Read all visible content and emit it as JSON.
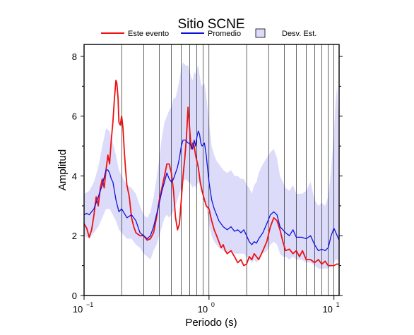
{
  "chart_data": {
    "type": "line",
    "title": "Sitio SCNE",
    "xlabel": "Periodo (s)",
    "ylabel": "Amplitud",
    "x_scale": "log",
    "xlim": [
      0.1,
      11
    ],
    "ylim": [
      0,
      8.4
    ],
    "x_ticks": [
      {
        "value": 0.1,
        "base": "10",
        "exp": "−1"
      },
      {
        "value": 1,
        "base": "10",
        "exp": "0"
      },
      {
        "value": 10,
        "base": "10",
        "exp": "1"
      }
    ],
    "y_ticks": [
      0,
      2,
      4,
      6,
      8
    ],
    "grid": "vertical log gridlines, horizontal ticks",
    "legend": {
      "placement": "top",
      "entries": [
        {
          "label": "Este evento",
          "kind": "line",
          "color": "#ee1111"
        },
        {
          "label": "Promedio",
          "kind": "line",
          "color": "#1111dd"
        },
        {
          "label": "Desv. Est.",
          "kind": "band",
          "color": "#dcdcfa"
        }
      ]
    },
    "series": [
      {
        "name": "Este evento",
        "color": "#ee1111",
        "points": [
          [
            0.1,
            2.4
          ],
          [
            0.105,
            2.25
          ],
          [
            0.11,
            1.95
          ],
          [
            0.115,
            2.2
          ],
          [
            0.12,
            2.7
          ],
          [
            0.125,
            3.3
          ],
          [
            0.13,
            3.0
          ],
          [
            0.135,
            3.6
          ],
          [
            0.14,
            3.9
          ],
          [
            0.145,
            3.6
          ],
          [
            0.15,
            4.2
          ],
          [
            0.155,
            4.7
          ],
          [
            0.16,
            4.4
          ],
          [
            0.165,
            5.2
          ],
          [
            0.17,
            5.8
          ],
          [
            0.175,
            6.6
          ],
          [
            0.18,
            7.2
          ],
          [
            0.183,
            7.1
          ],
          [
            0.187,
            6.6
          ],
          [
            0.19,
            5.8
          ],
          [
            0.195,
            5.7
          ],
          [
            0.2,
            6.0
          ],
          [
            0.205,
            5.6
          ],
          [
            0.21,
            4.8
          ],
          [
            0.215,
            4.2
          ],
          [
            0.22,
            3.7
          ],
          [
            0.23,
            3.3
          ],
          [
            0.24,
            2.6
          ],
          [
            0.25,
            2.3
          ],
          [
            0.26,
            2.1
          ],
          [
            0.28,
            2.0
          ],
          [
            0.3,
            2.0
          ],
          [
            0.32,
            1.85
          ],
          [
            0.34,
            1.9
          ],
          [
            0.36,
            2.1
          ],
          [
            0.38,
            2.6
          ],
          [
            0.4,
            3.2
          ],
          [
            0.42,
            3.6
          ],
          [
            0.44,
            4.0
          ],
          [
            0.46,
            4.4
          ],
          [
            0.48,
            4.4
          ],
          [
            0.5,
            4.1
          ],
          [
            0.52,
            3.5
          ],
          [
            0.54,
            2.6
          ],
          [
            0.56,
            2.2
          ],
          [
            0.58,
            2.4
          ],
          [
            0.6,
            3.2
          ],
          [
            0.62,
            4.0
          ],
          [
            0.64,
            4.6
          ],
          [
            0.66,
            5.3
          ],
          [
            0.68,
            6.3
          ],
          [
            0.7,
            5.6
          ],
          [
            0.72,
            4.9
          ],
          [
            0.74,
            5.1
          ],
          [
            0.76,
            5.0
          ],
          [
            0.78,
            4.7
          ],
          [
            0.8,
            4.5
          ],
          [
            0.82,
            4.3
          ],
          [
            0.85,
            3.8
          ],
          [
            0.88,
            3.5
          ],
          [
            0.92,
            3.2
          ],
          [
            0.95,
            3.0
          ],
          [
            1.0,
            2.9
          ],
          [
            1.05,
            2.5
          ],
          [
            1.1,
            2.2
          ],
          [
            1.15,
            2.0
          ],
          [
            1.2,
            1.8
          ],
          [
            1.25,
            1.6
          ],
          [
            1.3,
            1.7
          ],
          [
            1.35,
            1.5
          ],
          [
            1.4,
            1.4
          ],
          [
            1.5,
            1.5
          ],
          [
            1.6,
            1.3
          ],
          [
            1.7,
            1.1
          ],
          [
            1.8,
            1.2
          ],
          [
            1.9,
            1.0
          ],
          [
            2.0,
            1.05
          ],
          [
            2.1,
            1.3
          ],
          [
            2.2,
            1.2
          ],
          [
            2.3,
            1.4
          ],
          [
            2.5,
            1.2
          ],
          [
            2.7,
            1.5
          ],
          [
            2.9,
            1.8
          ],
          [
            3.1,
            2.3
          ],
          [
            3.3,
            2.6
          ],
          [
            3.5,
            2.5
          ],
          [
            3.7,
            2.2
          ],
          [
            3.9,
            1.8
          ],
          [
            4.1,
            1.5
          ],
          [
            4.4,
            1.55
          ],
          [
            4.7,
            1.4
          ],
          [
            5.0,
            1.5
          ],
          [
            5.3,
            1.3
          ],
          [
            5.6,
            1.5
          ],
          [
            6.0,
            1.2
          ],
          [
            6.5,
            1.2
          ],
          [
            7.0,
            1.1
          ],
          [
            7.5,
            1.2
          ],
          [
            8.0,
            1.05
          ],
          [
            8.5,
            1.15
          ],
          [
            9.0,
            1.0
          ],
          [
            9.5,
            1.0
          ],
          [
            10.0,
            1.0
          ],
          [
            10.5,
            1.05
          ],
          [
            11.0,
            1.05
          ]
        ]
      },
      {
        "name": "Promedio",
        "color": "#1111dd",
        "points": [
          [
            0.1,
            2.7
          ],
          [
            0.105,
            2.75
          ],
          [
            0.11,
            2.7
          ],
          [
            0.12,
            2.9
          ],
          [
            0.13,
            3.3
          ],
          [
            0.14,
            3.7
          ],
          [
            0.15,
            4.2
          ],
          [
            0.155,
            4.2
          ],
          [
            0.16,
            4.1
          ],
          [
            0.165,
            3.9
          ],
          [
            0.17,
            3.8
          ],
          [
            0.175,
            3.5
          ],
          [
            0.18,
            3.2
          ],
          [
            0.19,
            2.8
          ],
          [
            0.2,
            2.9
          ],
          [
            0.22,
            2.6
          ],
          [
            0.24,
            2.7
          ],
          [
            0.26,
            2.5
          ],
          [
            0.28,
            2.1
          ],
          [
            0.3,
            2.0
          ],
          [
            0.32,
            1.9
          ],
          [
            0.34,
            2.0
          ],
          [
            0.36,
            2.3
          ],
          [
            0.38,
            2.7
          ],
          [
            0.4,
            3.1
          ],
          [
            0.42,
            3.5
          ],
          [
            0.44,
            3.8
          ],
          [
            0.46,
            4.1
          ],
          [
            0.48,
            3.9
          ],
          [
            0.5,
            3.8
          ],
          [
            0.52,
            3.9
          ],
          [
            0.54,
            4.1
          ],
          [
            0.56,
            4.3
          ],
          [
            0.58,
            4.6
          ],
          [
            0.6,
            5.0
          ],
          [
            0.62,
            5.2
          ],
          [
            0.65,
            5.2
          ],
          [
            0.68,
            5.1
          ],
          [
            0.7,
            5.1
          ],
          [
            0.72,
            5.0
          ],
          [
            0.74,
            4.9
          ],
          [
            0.76,
            5.2
          ],
          [
            0.78,
            5.0
          ],
          [
            0.8,
            5.3
          ],
          [
            0.82,
            5.5
          ],
          [
            0.84,
            5.4
          ],
          [
            0.86,
            5.1
          ],
          [
            0.88,
            5.0
          ],
          [
            0.92,
            5.1
          ],
          [
            0.95,
            4.7
          ],
          [
            1.0,
            3.8
          ],
          [
            1.05,
            3.2
          ],
          [
            1.1,
            2.9
          ],
          [
            1.15,
            2.7
          ],
          [
            1.2,
            2.5
          ],
          [
            1.3,
            2.3
          ],
          [
            1.4,
            2.2
          ],
          [
            1.5,
            2.3
          ],
          [
            1.6,
            2.15
          ],
          [
            1.7,
            2.2
          ],
          [
            1.8,
            2.1
          ],
          [
            1.9,
            2.2
          ],
          [
            2.0,
            2.0
          ],
          [
            2.1,
            1.8
          ],
          [
            2.2,
            1.7
          ],
          [
            2.3,
            1.8
          ],
          [
            2.4,
            1.75
          ],
          [
            2.5,
            1.9
          ],
          [
            2.7,
            2.1
          ],
          [
            2.9,
            2.4
          ],
          [
            3.1,
            2.7
          ],
          [
            3.3,
            2.8
          ],
          [
            3.5,
            2.7
          ],
          [
            3.7,
            2.3
          ],
          [
            3.9,
            2.2
          ],
          [
            4.1,
            2.1
          ],
          [
            4.4,
            2.0
          ],
          [
            4.7,
            2.2
          ],
          [
            5.0,
            1.95
          ],
          [
            5.5,
            1.95
          ],
          [
            6.0,
            1.9
          ],
          [
            6.5,
            2.0
          ],
          [
            7.0,
            1.7
          ],
          [
            7.5,
            1.5
          ],
          [
            8.0,
            1.55
          ],
          [
            8.5,
            1.5
          ],
          [
            9.0,
            1.6
          ],
          [
            9.5,
            2.0
          ],
          [
            10.0,
            2.25
          ],
          [
            10.5,
            2.05
          ],
          [
            11.0,
            1.85
          ]
        ]
      }
    ],
    "band": {
      "name": "Desv. Est.",
      "color": "#dcdcfa",
      "points": [
        [
          0.1,
          2.0,
          3.4
        ],
        [
          0.11,
          1.9,
          3.5
        ],
        [
          0.12,
          2.1,
          3.8
        ],
        [
          0.13,
          2.3,
          4.3
        ],
        [
          0.14,
          2.6,
          5.0
        ],
        [
          0.15,
          2.9,
          5.6
        ],
        [
          0.16,
          2.9,
          5.5
        ],
        [
          0.17,
          2.7,
          5.1
        ],
        [
          0.18,
          2.5,
          4.7
        ],
        [
          0.19,
          2.2,
          4.2
        ],
        [
          0.2,
          2.1,
          4.0
        ],
        [
          0.22,
          1.9,
          3.7
        ],
        [
          0.24,
          1.9,
          3.6
        ],
        [
          0.26,
          1.7,
          3.4
        ],
        [
          0.28,
          1.6,
          3.0
        ],
        [
          0.3,
          1.4,
          2.7
        ],
        [
          0.32,
          1.3,
          2.6
        ],
        [
          0.34,
          1.2,
          2.8
        ],
        [
          0.36,
          1.5,
          3.3
        ],
        [
          0.38,
          1.7,
          3.9
        ],
        [
          0.4,
          2.0,
          4.6
        ],
        [
          0.42,
          2.3,
          5.3
        ],
        [
          0.44,
          2.6,
          5.8
        ],
        [
          0.46,
          2.7,
          6.0
        ],
        [
          0.48,
          2.6,
          6.2
        ],
        [
          0.5,
          2.7,
          6.3
        ],
        [
          0.52,
          2.8,
          6.6
        ],
        [
          0.54,
          3.0,
          6.6
        ],
        [
          0.56,
          3.2,
          6.9
        ],
        [
          0.58,
          3.4,
          7.2
        ],
        [
          0.6,
          3.6,
          7.6
        ],
        [
          0.62,
          3.8,
          7.8
        ],
        [
          0.65,
          3.9,
          7.7
        ],
        [
          0.68,
          3.8,
          7.7
        ],
        [
          0.7,
          3.8,
          7.5
        ],
        [
          0.72,
          3.7,
          7.3
        ],
        [
          0.74,
          3.6,
          7.2
        ],
        [
          0.76,
          3.7,
          7.5
        ],
        [
          0.78,
          3.6,
          7.4
        ],
        [
          0.8,
          3.7,
          7.6
        ],
        [
          0.82,
          3.8,
          7.7
        ],
        [
          0.84,
          3.7,
          7.4
        ],
        [
          0.86,
          3.5,
          7.1
        ],
        [
          0.88,
          3.4,
          7.0
        ],
        [
          0.92,
          3.3,
          7.1
        ],
        [
          0.95,
          3.0,
          6.7
        ],
        [
          1.0,
          2.4,
          5.8
        ],
        [
          1.05,
          2.0,
          5.0
        ],
        [
          1.1,
          1.8,
          4.7
        ],
        [
          1.15,
          1.7,
          4.5
        ],
        [
          1.2,
          1.6,
          4.4
        ],
        [
          1.3,
          1.5,
          4.2
        ],
        [
          1.4,
          1.4,
          4.1
        ],
        [
          1.5,
          1.5,
          4.2
        ],
        [
          1.6,
          1.4,
          4.0
        ],
        [
          1.7,
          1.4,
          4.0
        ],
        [
          1.8,
          1.4,
          3.9
        ],
        [
          1.9,
          1.4,
          3.9
        ],
        [
          2.0,
          1.3,
          3.7
        ],
        [
          2.1,
          1.2,
          3.6
        ],
        [
          2.2,
          1.1,
          3.4
        ],
        [
          2.3,
          1.2,
          3.7
        ],
        [
          2.4,
          1.1,
          3.8
        ],
        [
          2.5,
          1.2,
          4.1
        ],
        [
          2.7,
          1.4,
          4.4
        ],
        [
          2.9,
          1.5,
          4.6
        ],
        [
          3.1,
          1.7,
          4.8
        ],
        [
          3.3,
          1.8,
          4.9
        ],
        [
          3.5,
          1.7,
          4.6
        ],
        [
          3.7,
          1.4,
          4.0
        ],
        [
          3.9,
          1.3,
          3.8
        ],
        [
          4.1,
          1.3,
          3.6
        ],
        [
          4.4,
          1.2,
          3.5
        ],
        [
          4.7,
          1.3,
          3.7
        ],
        [
          5.0,
          1.2,
          3.4
        ],
        [
          5.5,
          1.2,
          3.4
        ],
        [
          6.0,
          1.1,
          3.5
        ],
        [
          6.5,
          1.1,
          3.8
        ],
        [
          7.0,
          1.0,
          3.2
        ],
        [
          7.5,
          0.9,
          3.0
        ],
        [
          8.0,
          0.9,
          3.1
        ],
        [
          8.5,
          0.9,
          3.0
        ],
        [
          9.0,
          0.9,
          3.3
        ],
        [
          9.5,
          1.0,
          4.2
        ],
        [
          10.0,
          1.1,
          5.4
        ],
        [
          10.3,
          1.2,
          6.5
        ],
        [
          10.6,
          1.2,
          7.0
        ],
        [
          11.0,
          1.1,
          5.8
        ]
      ]
    }
  }
}
